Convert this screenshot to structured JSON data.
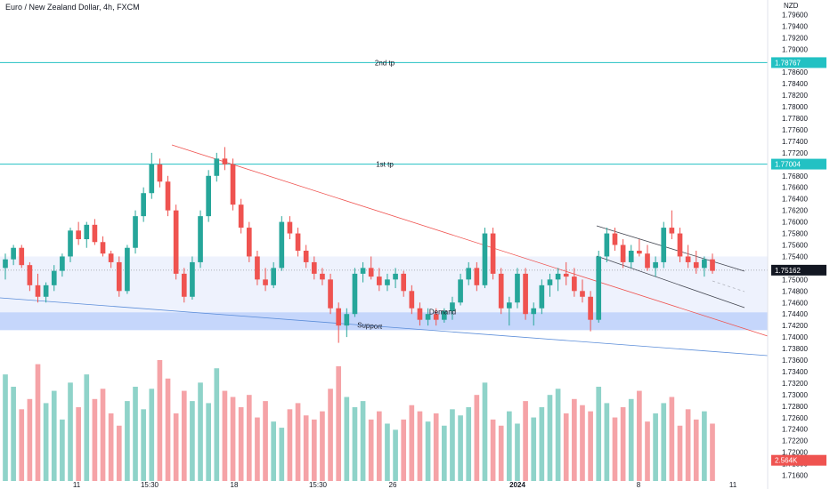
{
  "header": {
    "title": "Euro / New Zealand Dollar, 4h, FXCM"
  },
  "price_axis": {
    "currency": "NZD",
    "ticks": [
      "1.79600",
      "1.79400",
      "1.79200",
      "1.79000",
      "1.78800",
      "1.78600",
      "1.78400",
      "1.78200",
      "1.78000",
      "1.77800",
      "1.77600",
      "1.77400",
      "1.77200",
      "1.77000",
      "1.76800",
      "1.76600",
      "1.76400",
      "1.76200",
      "1.76000",
      "1.75800",
      "1.75600",
      "1.75400",
      "1.75200",
      "1.75000",
      "1.74800",
      "1.74600",
      "1.74400",
      "1.74200",
      "1.74000",
      "1.73800",
      "1.73600",
      "1.73400",
      "1.73200",
      "1.73000",
      "1.72800",
      "1.72600",
      "1.72400",
      "1.72200",
      "1.72000",
      "1.71800",
      "1.71600"
    ],
    "tags": [
      {
        "name": "2nd-tp-price-tag",
        "label": "1.78767",
        "price": 1.78767,
        "color": "#22c1c3"
      },
      {
        "name": "1st-tp-price-tag",
        "label": "1.77004",
        "price": 1.77004,
        "color": "#22c1c3"
      },
      {
        "name": "current-price-tag",
        "label": "1.75162",
        "price": 1.75162,
        "color": "#131722"
      },
      {
        "name": "volume-tag",
        "label": "2.564K",
        "price": 1.7186,
        "color": "#ef5350"
      }
    ]
  },
  "time_axis": {
    "ticks": [
      "11",
      "15:30",
      "18",
      "15:30",
      "26",
      "2024",
      "8",
      "11"
    ]
  },
  "annotations": {
    "second_tp": "2nd tp",
    "first_tp": "1st tp",
    "demand": "Demand",
    "support": "Support"
  },
  "colors": {
    "up": "#26a69a",
    "down": "#ef5350",
    "vol_up": "#8fd3c9",
    "vol_down": "#f5a3a7",
    "tp_line": "#22c1c3",
    "zone": "#c5d6fb",
    "zone_light": "#eef2fd",
    "red_line": "#ef5350",
    "blue_line": "#5b8dd9"
  },
  "chart_data": {
    "type": "candlestick",
    "symbol": "Euro / New Zealand Dollar",
    "timeframe": "4h",
    "ylim": [
      1.715,
      1.797
    ],
    "levels": [
      {
        "label": "2nd tp",
        "price": 1.78767
      },
      {
        "label": "1st tp",
        "price": 1.77004
      },
      {
        "label": "Demand",
        "price_low": 1.7412,
        "price_high": 1.7443
      },
      {
        "label": "current",
        "price": 1.75162
      }
    ],
    "candles": [
      [
        1.752,
        1.7545,
        1.75,
        1.7535
      ],
      [
        1.7535,
        1.756,
        1.7525,
        1.7555
      ],
      [
        1.7555,
        1.756,
        1.752,
        1.7525
      ],
      [
        1.7525,
        1.753,
        1.748,
        1.749
      ],
      [
        1.749,
        1.751,
        1.746,
        1.747
      ],
      [
        1.747,
        1.7495,
        1.746,
        1.749
      ],
      [
        1.749,
        1.7525,
        1.748,
        1.7515
      ],
      [
        1.7515,
        1.7545,
        1.7505,
        1.754
      ],
      [
        1.754,
        1.759,
        1.753,
        1.7585
      ],
      [
        1.7585,
        1.76,
        1.756,
        1.757
      ],
      [
        1.757,
        1.76,
        1.7555,
        1.7595
      ],
      [
        1.7595,
        1.7605,
        1.756,
        1.7565
      ],
      [
        1.7565,
        1.7575,
        1.754,
        1.7545
      ],
      [
        1.7545,
        1.755,
        1.752,
        1.753
      ],
      [
        1.753,
        1.754,
        1.747,
        1.748
      ],
      [
        1.748,
        1.756,
        1.7475,
        1.7555
      ],
      [
        1.7555,
        1.762,
        1.7545,
        1.761
      ],
      [
        1.761,
        1.766,
        1.76,
        1.765
      ],
      [
        1.765,
        1.772,
        1.764,
        1.77
      ],
      [
        1.77,
        1.771,
        1.766,
        1.767
      ],
      [
        1.767,
        1.768,
        1.761,
        1.762
      ],
      [
        1.762,
        1.763,
        1.75,
        1.751
      ],
      [
        1.751,
        1.752,
        1.746,
        1.747
      ],
      [
        1.747,
        1.754,
        1.7465,
        1.753
      ],
      [
        1.753,
        1.762,
        1.752,
        1.761
      ],
      [
        1.761,
        1.769,
        1.76,
        1.768
      ],
      [
        1.768,
        1.772,
        1.767,
        1.771
      ],
      [
        1.771,
        1.773,
        1.769,
        1.77
      ],
      [
        1.77,
        1.771,
        1.762,
        1.763
      ],
      [
        1.763,
        1.764,
        1.758,
        1.759
      ],
      [
        1.759,
        1.76,
        1.753,
        1.754
      ],
      [
        1.754,
        1.755,
        1.749,
        1.75
      ],
      [
        1.75,
        1.752,
        1.748,
        1.749
      ],
      [
        1.749,
        1.753,
        1.7485,
        1.752
      ],
      [
        1.752,
        1.761,
        1.7515,
        1.76
      ],
      [
        1.76,
        1.761,
        1.757,
        1.758
      ],
      [
        1.758,
        1.759,
        1.754,
        1.755
      ],
      [
        1.755,
        1.756,
        1.752,
        1.753
      ],
      [
        1.753,
        1.754,
        1.75,
        1.751
      ],
      [
        1.751,
        1.752,
        1.749,
        1.75
      ],
      [
        1.75,
        1.751,
        1.744,
        1.745
      ],
      [
        1.745,
        1.746,
        1.739,
        1.742
      ],
      [
        1.742,
        1.745,
        1.74,
        1.744
      ],
      [
        1.744,
        1.752,
        1.7435,
        1.751
      ],
      [
        1.751,
        1.753,
        1.7495,
        1.752
      ],
      [
        1.752,
        1.754,
        1.75,
        1.7505
      ],
      [
        1.7505,
        1.752,
        1.748,
        1.749
      ],
      [
        1.749,
        1.751,
        1.748,
        1.75
      ],
      [
        1.75,
        1.752,
        1.7485,
        1.751
      ],
      [
        1.751,
        1.7515,
        1.747,
        1.748
      ],
      [
        1.748,
        1.749,
        1.744,
        1.745
      ],
      [
        1.745,
        1.746,
        1.742,
        1.743
      ],
      [
        1.743,
        1.745,
        1.742,
        1.744
      ],
      [
        1.744,
        1.745,
        1.742,
        1.743
      ],
      [
        1.743,
        1.745,
        1.7425,
        1.7445
      ],
      [
        1.7445,
        1.747,
        1.743,
        1.746
      ],
      [
        1.746,
        1.751,
        1.7455,
        1.75
      ],
      [
        1.75,
        1.753,
        1.749,
        1.752
      ],
      [
        1.752,
        1.753,
        1.748,
        1.749
      ],
      [
        1.749,
        1.759,
        1.7485,
        1.758
      ],
      [
        1.758,
        1.759,
        1.75,
        1.751
      ],
      [
        1.751,
        1.752,
        1.744,
        1.745
      ],
      [
        1.745,
        1.747,
        1.742,
        1.746
      ],
      [
        1.746,
        1.752,
        1.745,
        1.751
      ],
      [
        1.751,
        1.752,
        1.743,
        1.744
      ],
      [
        1.744,
        1.746,
        1.742,
        1.745
      ],
      [
        1.745,
        1.75,
        1.744,
        1.749
      ],
      [
        1.749,
        1.751,
        1.747,
        1.75
      ],
      [
        1.75,
        1.752,
        1.748,
        1.751
      ],
      [
        1.751,
        1.753,
        1.749,
        1.7505
      ],
      [
        1.7505,
        1.752,
        1.747,
        1.748
      ],
      [
        1.748,
        1.75,
        1.746,
        1.747
      ],
      [
        1.747,
        1.748,
        1.741,
        1.743
      ],
      [
        1.743,
        1.755,
        1.7425,
        1.754
      ],
      [
        1.754,
        1.759,
        1.753,
        1.758
      ],
      [
        1.758,
        1.759,
        1.755,
        1.756
      ],
      [
        1.756,
        1.757,
        1.752,
        1.753
      ],
      [
        1.753,
        1.756,
        1.752,
        1.755
      ],
      [
        1.755,
        1.757,
        1.754,
        1.7545
      ],
      [
        1.7545,
        1.756,
        1.7515,
        1.752
      ],
      [
        1.752,
        1.754,
        1.7505,
        1.753
      ],
      [
        1.753,
        1.76,
        1.752,
        1.759
      ],
      [
        1.759,
        1.762,
        1.757,
        1.758
      ],
      [
        1.758,
        1.759,
        1.753,
        1.754
      ],
      [
        1.754,
        1.756,
        1.752,
        1.753
      ],
      [
        1.753,
        1.755,
        1.751,
        1.752
      ],
      [
        1.752,
        1.754,
        1.7505,
        1.7535
      ],
      [
        1.7535,
        1.7545,
        1.751,
        1.7515
      ]
    ],
    "volume": [
      52,
      46,
      35,
      40,
      57,
      38,
      44,
      30,
      48,
      36,
      52,
      40,
      45,
      33,
      27,
      39,
      46,
      35,
      45,
      59,
      50,
      33,
      44,
      39,
      48,
      38,
      55,
      44,
      41,
      36,
      42,
      31,
      39,
      29,
      26,
      35,
      38,
      32,
      30,
      34,
      45,
      56,
      41,
      36,
      39,
      30,
      34,
      28,
      25,
      30,
      37,
      34,
      29,
      33,
      27,
      35,
      32,
      36,
      42,
      48,
      30,
      27,
      34,
      28,
      39,
      31,
      36,
      42,
      45,
      33,
      40,
      37,
      34,
      46,
      38,
      31,
      36,
      40,
      44,
      29,
      33,
      38,
      41,
      27,
      35,
      30,
      34,
      28
    ]
  }
}
